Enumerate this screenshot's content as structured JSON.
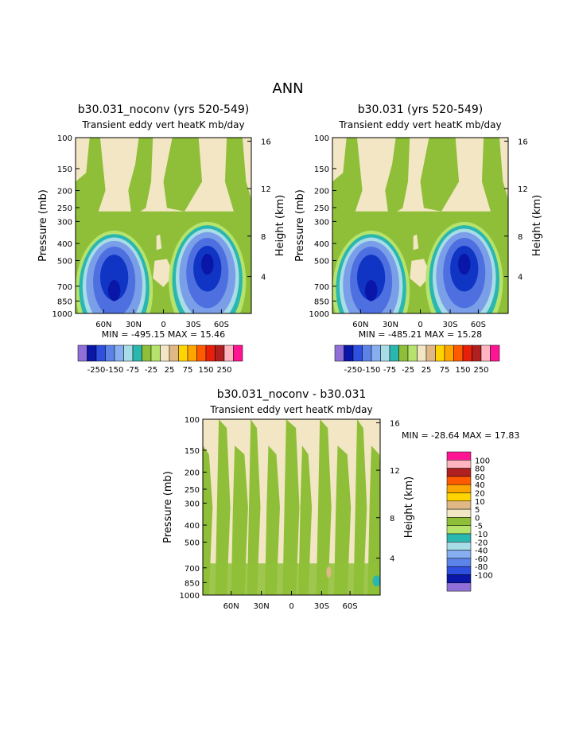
{
  "page_title": "ANN",
  "colors": {
    "bg": "#f3e6c4",
    "green": "#8fbf38",
    "lightgreen": "#b5e36c",
    "teal": "#2ab7b0",
    "paleblue": "#a8dce6",
    "blue1": "#7a9ee8",
    "blue2": "#4d6fe0",
    "blue3": "#1035c4",
    "darkblue": "#0a16a8",
    "purple": "#9070d8",
    "tan": "#e0b885"
  },
  "chart_data": [
    {
      "type": "contour",
      "title": "b30.031_noconv (yrs 520-549)",
      "subtitle": "Transient eddy vert heatK mb/day",
      "ylabel": "Pressure (mb)",
      "y2label": "Height (km)",
      "y_ticks": [
        "100",
        "150",
        "200",
        "250",
        "300",
        "400",
        "500",
        "700",
        "850",
        "1000"
      ],
      "y2_ticks": [
        "16",
        "12",
        "8",
        "4"
      ],
      "x_ticks": [
        "60N",
        "30N",
        "0",
        "30S",
        "60S"
      ],
      "stats": "MIN = -495.15 MAX = 15.46",
      "min": -495.15,
      "max": 15.46,
      "legend_levels": [
        -250,
        -200,
        -150,
        -100,
        -75,
        -50,
        -25,
        -10,
        10,
        25,
        50,
        75,
        100,
        150,
        200,
        250
      ],
      "legend_labels": [
        "-250",
        "-150",
        "-75",
        "-25",
        "25",
        "75",
        "150",
        "250"
      ]
    },
    {
      "type": "contour",
      "title": "b30.031 (yrs 520-549)",
      "subtitle": "Transient eddy vert heatK mb/day",
      "ylabel": "Pressure (mb)",
      "y2label": "Height (km)",
      "y_ticks": [
        "100",
        "150",
        "200",
        "250",
        "300",
        "400",
        "500",
        "700",
        "850",
        "1000"
      ],
      "y2_ticks": [
        "16",
        "12",
        "8",
        "4"
      ],
      "x_ticks": [
        "60N",
        "30N",
        "0",
        "30S",
        "60S"
      ],
      "stats": "MIN = -485.21 MAX = 15.28",
      "min": -485.21,
      "max": 15.28,
      "legend_levels": [
        -250,
        -200,
        -150,
        -100,
        -75,
        -50,
        -25,
        -10,
        10,
        25,
        50,
        75,
        100,
        150,
        200,
        250
      ],
      "legend_labels": [
        "-250",
        "-150",
        "-75",
        "-25",
        "25",
        "75",
        "150",
        "250"
      ]
    },
    {
      "type": "contour",
      "title": "b30.031_noconv - b30.031",
      "subtitle": "Transient eddy vert heatK mb/day",
      "ylabel": "Pressure (mb)",
      "y2label": "Height (km)",
      "y_ticks": [
        "100",
        "150",
        "200",
        "250",
        "300",
        "400",
        "500",
        "700",
        "850",
        "1000"
      ],
      "y2_ticks": [
        "16",
        "12",
        "8",
        "4"
      ],
      "x_ticks": [
        "60N",
        "30N",
        "0",
        "30S",
        "60S"
      ],
      "stats": "MIN = -28.64 MAX = 17.83",
      "min": -28.64,
      "max": 17.83,
      "legend_labels": [
        "100",
        "80",
        "60",
        "40",
        "20",
        "10",
        "5",
        "0",
        "-5",
        "-10",
        "-20",
        "-40",
        "-60",
        "-80",
        "-100"
      ]
    }
  ],
  "legend_colors": [
    "#9070d8",
    "#0a16a8",
    "#2f4fe0",
    "#5c84e8",
    "#86aef0",
    "#a8dce6",
    "#2ab7b0",
    "#8fbf38",
    "#b5e36c",
    "#f3e6c4",
    "#e0b885",
    "#ffd400",
    "#ffa500",
    "#ff5a00",
    "#e8200a",
    "#b02020",
    "#ffb6c1",
    "#ff1493"
  ],
  "diff_legend_colors": [
    "#ff1493",
    "#ffb6c1",
    "#b02020",
    "#ff5a00",
    "#ffa500",
    "#ffd400",
    "#e0b885",
    "#f3e6c4",
    "#8fbf38",
    "#b5e36c",
    "#2ab7b0",
    "#a8dce6",
    "#86aef0",
    "#5c84e8",
    "#2f4fe0",
    "#0a16a8",
    "#9070d8"
  ]
}
